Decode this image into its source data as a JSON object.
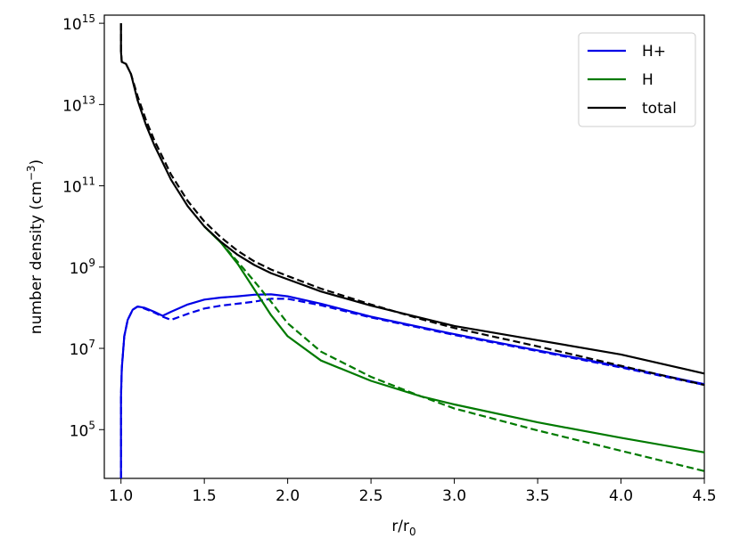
{
  "chart_data": {
    "type": "line",
    "xlabel": "r/r",
    "xlabel_sub": "0",
    "ylabel": "number density (cm",
    "ylabel_sup": "−3",
    "ylabel_end": ")",
    "xlim": [
      0.9,
      4.5
    ],
    "ylim_log10": [
      3.8,
      15.2
    ],
    "yscale": "log",
    "grid": false,
    "legend_position": "top-right",
    "xticks": [
      1.0,
      1.5,
      2.0,
      2.5,
      3.0,
      3.5,
      4.0,
      4.5
    ],
    "xtick_labels": [
      "1.0",
      "1.5",
      "2.0",
      "2.5",
      "3.0",
      "3.5",
      "4.0",
      "4.5"
    ],
    "yticks": [
      {
        "base": "10",
        "exp": "5",
        "value": 100000
      },
      {
        "base": "10",
        "exp": "7",
        "value": 10000000
      },
      {
        "base": "10",
        "exp": "9",
        "value": 1000000000
      },
      {
        "base": "10",
        "exp": "11",
        "value": 100000000000
      },
      {
        "base": "10",
        "exp": "13",
        "value": 10000000000000
      },
      {
        "base": "10",
        "exp": "15",
        "value": 1000000000000000
      }
    ],
    "legend": [
      {
        "label": "H+",
        "color": "#0000e6"
      },
      {
        "label": "H",
        "color": "#007a00"
      },
      {
        "label": "total",
        "color": "#000000"
      }
    ],
    "series": [
      {
        "name": "H+",
        "color": "#0000e6",
        "style": "solid",
        "x": [
          1.0,
          1.0,
          1.005,
          1.02,
          1.04,
          1.07,
          1.1,
          1.14,
          1.2,
          1.25,
          1.3,
          1.4,
          1.5,
          1.6,
          1.7,
          1.8,
          1.9,
          2.0,
          2.2,
          2.5,
          2.8,
          3.0,
          3.5,
          4.0,
          4.5
        ],
        "y": [
          3.8,
          5.8,
          6.5,
          7.3,
          7.7,
          7.95,
          8.03,
          8.0,
          7.9,
          7.8,
          7.9,
          8.08,
          8.2,
          8.25,
          8.28,
          8.32,
          8.33,
          8.28,
          8.1,
          7.78,
          7.52,
          7.35,
          6.95,
          6.55,
          6.12
        ]
      },
      {
        "name": "H+",
        "color": "#0000e6",
        "style": "dashed",
        "x": [
          1.0,
          1.0,
          1.005,
          1.02,
          1.04,
          1.07,
          1.1,
          1.14,
          1.2,
          1.25,
          1.3,
          1.4,
          1.5,
          1.6,
          1.7,
          1.8,
          1.9,
          2.0,
          2.2,
          2.5,
          2.8,
          3.0,
          3.5,
          4.0,
          4.5
        ],
        "y": [
          3.8,
          5.8,
          6.5,
          7.3,
          7.7,
          7.95,
          8.03,
          7.98,
          7.88,
          7.78,
          7.7,
          7.85,
          7.98,
          8.05,
          8.1,
          8.15,
          8.22,
          8.22,
          8.06,
          7.76,
          7.5,
          7.33,
          6.93,
          6.53,
          6.1
        ]
      },
      {
        "name": "H",
        "color": "#007a00",
        "style": "solid",
        "x": [
          1.5,
          1.6,
          1.7,
          1.8,
          1.9,
          2.0,
          2.2,
          2.5,
          2.8,
          3.0,
          3.5,
          4.0,
          4.5
        ],
        "y": [
          10.0,
          9.6,
          9.08,
          8.45,
          7.82,
          7.3,
          6.7,
          6.2,
          5.82,
          5.62,
          5.18,
          4.8,
          4.44
        ]
      },
      {
        "name": "H",
        "color": "#007a00",
        "style": "dashed",
        "x": [
          1.5,
          1.6,
          1.7,
          1.8,
          1.9,
          2.0,
          2.2,
          2.5,
          2.8,
          3.0,
          3.5,
          4.0,
          4.5
        ],
        "y": [
          10.0,
          9.6,
          9.13,
          8.65,
          8.15,
          7.62,
          6.92,
          6.3,
          5.82,
          5.52,
          4.98,
          4.48,
          3.98
        ]
      },
      {
        "name": "total",
        "color": "#000000",
        "style": "solid",
        "x": [
          1.0,
          1.0,
          1.005,
          1.03,
          1.06,
          1.1,
          1.15,
          1.2,
          1.3,
          1.4,
          1.5,
          1.6,
          1.7,
          1.8,
          1.9,
          2.0,
          2.2,
          2.5,
          2.8,
          3.0,
          3.5,
          4.0,
          4.5
        ],
        "y": [
          15.0,
          14.3,
          14.05,
          14.0,
          13.75,
          13.1,
          12.5,
          12.0,
          11.15,
          10.5,
          10.0,
          9.62,
          9.3,
          9.05,
          8.85,
          8.7,
          8.4,
          8.05,
          7.75,
          7.55,
          7.2,
          6.85,
          6.38
        ]
      },
      {
        "name": "total",
        "color": "#000000",
        "style": "dashed",
        "x": [
          1.0,
          1.0,
          1.005,
          1.03,
          1.06,
          1.1,
          1.15,
          1.2,
          1.3,
          1.4,
          1.5,
          1.6,
          1.7,
          1.8,
          1.9,
          2.0,
          2.2,
          2.5,
          2.8,
          3.0,
          3.5,
          4.0,
          4.5
        ],
        "y": [
          15.0,
          14.3,
          14.05,
          14.0,
          13.75,
          13.2,
          12.62,
          12.12,
          11.28,
          10.63,
          10.12,
          9.73,
          9.4,
          9.14,
          8.94,
          8.78,
          8.47,
          8.08,
          7.72,
          7.5,
          7.05,
          6.57,
          6.1
        ]
      }
    ]
  }
}
